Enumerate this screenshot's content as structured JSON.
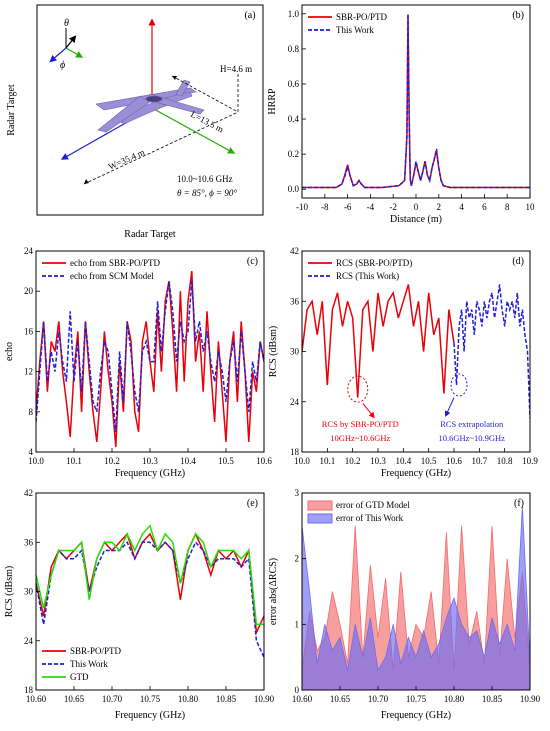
{
  "chart_data": [
    {
      "panel": "(a)",
      "type": "diagram",
      "ylabel": "Radar Target",
      "xlabel": "Radar Target",
      "annotations": {
        "height": "H=4.6 m",
        "length": "L=13.5 m",
        "width": "W=35.4 m",
        "band": "10.0~10.6 GHz",
        "angles": "θ = 85°, ϕ = 90°",
        "theta": "θ",
        "phi": "ϕ"
      }
    },
    {
      "panel": "(b)",
      "type": "line",
      "xlabel": "Distance (m)",
      "ylabel": "HRRP",
      "xlim": [
        -10,
        10
      ],
      "ylim": [
        -0.05,
        1.05
      ],
      "xticks": [
        "-10",
        "-8",
        "-6",
        "-4",
        "-2",
        "0",
        "2",
        "4",
        "6",
        "8",
        "10"
      ],
      "yticks": [
        "0.0",
        "0.2",
        "0.4",
        "0.6",
        "0.8",
        "1.0"
      ],
      "legend_position": "top-left",
      "series": [
        {
          "name": "SBR-PO/PTD",
          "color": "#e8000b",
          "style": "solid",
          "x": [
            -10,
            -7,
            -6.5,
            -6.2,
            -6,
            -5.8,
            -5.5,
            -5.2,
            -5,
            -4.8,
            -4.5,
            -3,
            -1.5,
            -1,
            -0.8,
            -0.7,
            -0.6,
            -0.5,
            -0.4,
            -0.2,
            0,
            0.2,
            0.4,
            0.6,
            0.8,
            1,
            1.2,
            1.4,
            1.6,
            1.8,
            2,
            2.2,
            2.4,
            3,
            4,
            6,
            10
          ],
          "y": [
            0.01,
            0.01,
            0.03,
            0.09,
            0.14,
            0.08,
            0.02,
            0.03,
            0.05,
            0.03,
            0.01,
            0.01,
            0.02,
            0.05,
            0.3,
            0.99,
            0.4,
            0.05,
            0.02,
            0.08,
            0.15,
            0.1,
            0.05,
            0.1,
            0.16,
            0.08,
            0.05,
            0.12,
            0.17,
            0.22,
            0.12,
            0.05,
            0.02,
            0.01,
            0.01,
            0.01,
            0.01
          ]
        },
        {
          "name": "This Work",
          "color": "#1f1fd4",
          "style": "dashed",
          "x": [
            -10,
            -7,
            -6.5,
            -6.2,
            -6,
            -5.8,
            -5.5,
            -5.2,
            -5,
            -4.8,
            -4.5,
            -3,
            -1.5,
            -1,
            -0.8,
            -0.7,
            -0.6,
            -0.5,
            -0.4,
            -0.2,
            0,
            0.2,
            0.4,
            0.6,
            0.8,
            1,
            1.2,
            1.4,
            1.6,
            1.8,
            2,
            2.2,
            2.4,
            3,
            4,
            6,
            10
          ],
          "y": [
            0.01,
            0.01,
            0.03,
            0.08,
            0.13,
            0.08,
            0.02,
            0.03,
            0.05,
            0.03,
            0.01,
            0.01,
            0.02,
            0.05,
            0.3,
            1.0,
            0.4,
            0.05,
            0.02,
            0.08,
            0.16,
            0.1,
            0.05,
            0.1,
            0.16,
            0.08,
            0.05,
            0.12,
            0.17,
            0.23,
            0.12,
            0.05,
            0.02,
            0.01,
            0.01,
            0.01,
            0.01
          ]
        }
      ]
    },
    {
      "panel": "(c)",
      "type": "line",
      "xlabel": "Frequency (GHz)",
      "ylabel": "echo",
      "xlim": [
        10.0,
        10.6
      ],
      "ylim": [
        4,
        24
      ],
      "xticks": [
        "10.0",
        "10.1",
        "10.2",
        "10.3",
        "10.4",
        "10.5",
        "10.6"
      ],
      "yticks": [
        "4",
        "8",
        "12",
        "16",
        "20",
        "24"
      ],
      "legend_position": "top-left",
      "series": [
        {
          "name": "echo from SBR-PO/PTD",
          "color": "#e8000b",
          "style": "solid",
          "x": [
            10.0,
            10.01,
            10.02,
            10.03,
            10.04,
            10.05,
            10.06,
            10.07,
            10.08,
            10.09,
            10.1,
            10.11,
            10.12,
            10.13,
            10.14,
            10.15,
            10.16,
            10.17,
            10.18,
            10.19,
            10.2,
            10.21,
            10.22,
            10.23,
            10.24,
            10.25,
            10.26,
            10.27,
            10.28,
            10.29,
            10.3,
            10.31,
            10.32,
            10.33,
            10.34,
            10.35,
            10.36,
            10.37,
            10.38,
            10.39,
            10.4,
            10.41,
            10.42,
            10.43,
            10.44,
            10.45,
            10.46,
            10.47,
            10.48,
            10.49,
            10.5,
            10.51,
            10.52,
            10.53,
            10.54,
            10.55,
            10.56,
            10.57,
            10.58,
            10.59,
            10.6
          ],
          "y": [
            8,
            13,
            17,
            10,
            15,
            14,
            17,
            12,
            9,
            5.5,
            12,
            16,
            8,
            17,
            12,
            8,
            5,
            10,
            16,
            12,
            9,
            4.5,
            13,
            8,
            17,
            15,
            8,
            6,
            15,
            17,
            13,
            10,
            18,
            12,
            19,
            21,
            16,
            10,
            20,
            11,
            19,
            22,
            13,
            16,
            10,
            18,
            12,
            7,
            15,
            10,
            5,
            13,
            16,
            9,
            17,
            12,
            5,
            12,
            10,
            15,
            13
          ]
        },
        {
          "name": "echo from SCM Model",
          "color": "#1f1fd4",
          "style": "dashed",
          "x": [
            10.0,
            10.01,
            10.02,
            10.03,
            10.04,
            10.05,
            10.06,
            10.07,
            10.08,
            10.09,
            10.1,
            10.11,
            10.12,
            10.13,
            10.14,
            10.15,
            10.16,
            10.17,
            10.18,
            10.19,
            10.2,
            10.21,
            10.22,
            10.23,
            10.24,
            10.25,
            10.26,
            10.27,
            10.28,
            10.29,
            10.3,
            10.31,
            10.32,
            10.33,
            10.34,
            10.35,
            10.36,
            10.37,
            10.38,
            10.39,
            10.4,
            10.41,
            10.42,
            10.43,
            10.44,
            10.45,
            10.46,
            10.47,
            10.48,
            10.49,
            10.5,
            10.51,
            10.52,
            10.53,
            10.54,
            10.55,
            10.56,
            10.57,
            10.58,
            10.59,
            10.6
          ],
          "y": [
            7,
            12,
            17,
            11,
            14,
            12,
            16,
            13,
            11,
            18,
            11,
            15,
            10,
            17,
            13,
            9,
            8,
            12,
            15,
            14,
            10,
            6,
            14,
            9,
            17,
            14,
            10,
            8,
            14,
            15,
            13,
            13,
            19,
            14,
            18,
            21,
            18,
            13,
            17,
            15,
            16,
            21,
            15,
            17,
            14,
            16,
            13,
            11,
            14,
            12,
            9,
            13,
            15,
            11,
            16,
            12,
            8,
            13,
            11,
            15,
            13
          ]
        }
      ]
    },
    {
      "panel": "(d)",
      "type": "line",
      "xlabel": "Frequency (GHz)",
      "ylabel": "RCS (dBsm)",
      "xlim": [
        10.0,
        10.9
      ],
      "ylim": [
        18,
        42
      ],
      "xticks": [
        "10.0",
        "10.1",
        "10.2",
        "10.3",
        "10.4",
        "10.5",
        "10.6",
        "10.7",
        "10.8",
        "10.9"
      ],
      "yticks": [
        "18",
        "24",
        "30",
        "36",
        "42"
      ],
      "legend_position": "top-left",
      "annotations": {
        "left_label_1": "RCS by SBR-PO/PTD",
        "left_label_2": "10GHz~10.6GHz",
        "right_label_1": "RCS extrapolation",
        "right_label_2": "10.6GHz~10.9GHz"
      },
      "series": [
        {
          "name": "RCS (SBR-PO/PTD)",
          "color": "#e8000b",
          "style": "solid",
          "x": [
            10.0,
            10.02,
            10.04,
            10.06,
            10.08,
            10.1,
            10.12,
            10.14,
            10.16,
            10.18,
            10.2,
            10.22,
            10.24,
            10.26,
            10.28,
            10.3,
            10.32,
            10.34,
            10.36,
            10.38,
            10.4,
            10.42,
            10.44,
            10.46,
            10.48,
            10.5,
            10.52,
            10.54,
            10.56,
            10.58,
            10.6
          ],
          "y": [
            30,
            35,
            36,
            32,
            36,
            26,
            35,
            37,
            33,
            36,
            34,
            24.5,
            35,
            36,
            30,
            37,
            33,
            36,
            37,
            34,
            36,
            38,
            33,
            36,
            30,
            37,
            32,
            34,
            25,
            35,
            31
          ]
        },
        {
          "name": "RCS (This Work)",
          "color": "#1f1fd4",
          "style": "dashed",
          "x": [
            10.6,
            10.61,
            10.62,
            10.63,
            10.64,
            10.65,
            10.66,
            10.67,
            10.68,
            10.69,
            10.7,
            10.71,
            10.72,
            10.73,
            10.74,
            10.75,
            10.76,
            10.77,
            10.78,
            10.79,
            10.8,
            10.81,
            10.82,
            10.83,
            10.84,
            10.85,
            10.86,
            10.87,
            10.88,
            10.89,
            10.9
          ],
          "y": [
            31,
            26,
            33,
            35,
            30,
            36,
            34,
            35,
            32,
            36,
            35,
            33,
            36,
            34,
            36,
            37,
            34,
            36,
            38,
            35,
            33,
            36,
            35,
            36,
            34,
            37,
            33,
            35,
            32,
            30,
            22
          ]
        }
      ]
    },
    {
      "panel": "(e)",
      "type": "line",
      "xlabel": "Frequency (GHz)",
      "ylabel": "RCS (dBsm)",
      "xlim": [
        10.6,
        10.9
      ],
      "ylim": [
        18,
        42
      ],
      "xticks": [
        "10.60",
        "10.65",
        "10.70",
        "10.75",
        "10.80",
        "10.85",
        "10.90"
      ],
      "yticks": [
        "18",
        "24",
        "30",
        "36",
        "42"
      ],
      "legend_position": "bottom-left",
      "series": [
        {
          "name": "SBR-PO/PTD",
          "color": "#e8000b",
          "style": "solid",
          "x": [
            10.6,
            10.61,
            10.62,
            10.63,
            10.64,
            10.65,
            10.66,
            10.67,
            10.68,
            10.69,
            10.7,
            10.71,
            10.72,
            10.73,
            10.74,
            10.75,
            10.76,
            10.77,
            10.78,
            10.79,
            10.8,
            10.81,
            10.82,
            10.83,
            10.84,
            10.85,
            10.86,
            10.87,
            10.88,
            10.89,
            10.9
          ],
          "y": [
            31,
            27,
            33,
            35,
            34,
            35,
            36,
            30,
            34,
            36,
            35,
            36,
            37,
            34,
            36,
            37,
            35,
            36,
            35,
            29,
            35,
            37,
            35,
            32,
            35,
            34,
            35,
            33,
            35,
            25,
            27
          ]
        },
        {
          "name": "This Work",
          "color": "#1f1fd4",
          "style": "dashed",
          "x": [
            10.6,
            10.61,
            10.62,
            10.63,
            10.64,
            10.65,
            10.66,
            10.67,
            10.68,
            10.69,
            10.7,
            10.71,
            10.72,
            10.73,
            10.74,
            10.75,
            10.76,
            10.77,
            10.78,
            10.79,
            10.8,
            10.81,
            10.82,
            10.83,
            10.84,
            10.85,
            10.86,
            10.87,
            10.88,
            10.89,
            10.9
          ],
          "y": [
            31,
            26,
            32,
            35,
            34,
            34,
            35,
            30,
            33,
            35,
            35,
            35,
            36,
            34,
            36,
            36,
            35,
            36,
            35,
            31,
            34,
            36,
            35,
            33,
            34,
            34,
            34,
            33,
            34,
            24,
            22
          ]
        },
        {
          "name": "GTD",
          "color": "#22e000",
          "style": "solid",
          "x": [
            10.6,
            10.61,
            10.62,
            10.63,
            10.64,
            10.65,
            10.66,
            10.67,
            10.68,
            10.69,
            10.7,
            10.71,
            10.72,
            10.73,
            10.74,
            10.75,
            10.76,
            10.77,
            10.78,
            10.79,
            10.8,
            10.81,
            10.82,
            10.83,
            10.84,
            10.85,
            10.86,
            10.87,
            10.88,
            10.89,
            10.9
          ],
          "y": [
            32,
            28,
            32,
            35,
            35,
            35,
            36,
            29,
            34,
            36,
            36,
            35,
            37,
            35,
            37,
            38,
            35,
            37,
            36,
            31,
            35,
            37,
            36,
            33,
            35,
            35,
            35,
            34,
            35,
            26,
            26
          ]
        }
      ]
    },
    {
      "panel": "(f)",
      "type": "area",
      "xlabel": "Frequency (GHz)",
      "ylabel": "error abs(ΔRCS)",
      "xlim": [
        10.6,
        10.9
      ],
      "ylim": [
        0,
        3
      ],
      "xticks": [
        "10.60",
        "10.65",
        "10.70",
        "10.75",
        "10.80",
        "10.85",
        "10.90"
      ],
      "yticks": [
        "0",
        "1",
        "2",
        "3"
      ],
      "legend_position": "top-left",
      "series": [
        {
          "name": "error of GTD Model",
          "color": "#f26b6b",
          "x": [
            10.6,
            10.61,
            10.62,
            10.63,
            10.64,
            10.65,
            10.66,
            10.67,
            10.68,
            10.69,
            10.7,
            10.71,
            10.72,
            10.73,
            10.74,
            10.75,
            10.76,
            10.77,
            10.78,
            10.79,
            10.8,
            10.81,
            10.82,
            10.83,
            10.84,
            10.85,
            10.86,
            10.87,
            10.88,
            10.89,
            10.9
          ],
          "y": [
            0.3,
            1.2,
            0.6,
            0.8,
            1.5,
            1.0,
            0.4,
            2.5,
            0.5,
            1.9,
            0.8,
            1.7,
            0.3,
            1.8,
            0.5,
            1.0,
            0.8,
            1.5,
            0.4,
            2.4,
            0.3,
            2.5,
            0.7,
            1.2,
            0.4,
            2.5,
            0.5,
            2.0,
            0.8,
            1.8,
            0.3
          ]
        },
        {
          "name": "error of This Work",
          "color": "#6b6bf2",
          "x": [
            10.6,
            10.61,
            10.62,
            10.63,
            10.64,
            10.65,
            10.66,
            10.67,
            10.68,
            10.69,
            10.7,
            10.71,
            10.72,
            10.73,
            10.74,
            10.75,
            10.76,
            10.77,
            10.78,
            10.79,
            10.8,
            10.81,
            10.82,
            10.83,
            10.84,
            10.85,
            10.86,
            10.87,
            10.88,
            10.89,
            10.9
          ],
          "y": [
            2.5,
            1.5,
            0.4,
            1.0,
            0.6,
            0.8,
            0.3,
            1.0,
            0.5,
            1.1,
            0.3,
            0.5,
            1.0,
            0.4,
            0.8,
            0.5,
            0.9,
            0.5,
            0.7,
            1.1,
            1.4,
            1.0,
            0.8,
            0.9,
            0.5,
            1.1,
            0.7,
            1.0,
            0.6,
            2.8,
            0.4
          ]
        }
      ]
    }
  ]
}
